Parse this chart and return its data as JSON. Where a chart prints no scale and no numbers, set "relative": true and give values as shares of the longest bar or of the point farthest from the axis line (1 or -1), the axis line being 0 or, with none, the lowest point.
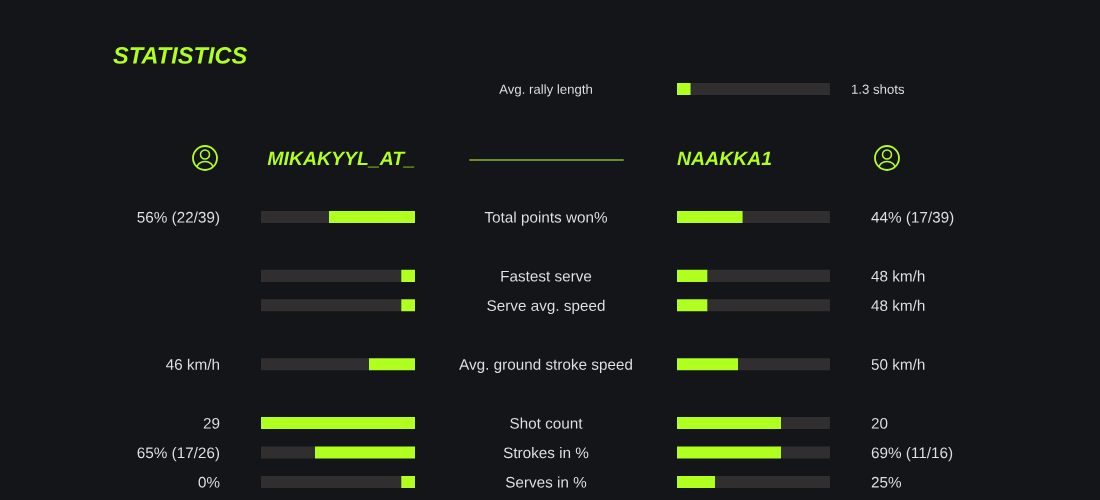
{
  "chart_data": [
    {
      "type": "bar",
      "orientation": "horizontal",
      "stacked": true,
      "relative": true,
      "categories": [
        "Avg. rally length"
      ],
      "series": [
        {
          "color": "#b0ff1e",
          "values": [
            0.09
          ]
        },
        {
          "color": "#302e2e",
          "values": [
            0.91
          ]
        }
      ],
      "annotations": [
        "1.3 shots"
      ],
      "tick_labels": "y"
    },
    {
      "type": "bar",
      "orientation": "horizontal",
      "stacked": true,
      "relative": true,
      "title": "STATISTICS",
      "categories": [
        "Total points won%",
        null,
        "Fastest serve",
        "Serve avg. speed",
        null,
        "Avg. ground stroke speed",
        null,
        "Shot count",
        "Strokes in %",
        "Serves in %"
      ],
      "series": [
        {
          "name": "MIKAKYYL_AT_",
          "color": "#b0ff1e",
          "values": [
            -0.56,
            null,
            -0.09,
            -0.09,
            null,
            -0.3,
            null,
            -1,
            -0.65,
            -0.09
          ]
        },
        {
          "color": "#302e2e",
          "values": [
            -0.44,
            null,
            -0.91,
            -0.91,
            null,
            -0.7,
            null,
            0,
            -0.35,
            -0.91
          ]
        }
      ],
      "annotations": [
        "56% (22/39)",
        "46 km/h",
        "29",
        "65% (17/26)",
        "0%"
      ],
      "tick_labels": "y"
    },
    {
      "type": "bar",
      "orientation": "horizontal",
      "stacked": true,
      "relative": true,
      "categories": [
        null,
        null,
        null,
        null,
        null,
        null,
        null,
        null,
        null,
        null
      ],
      "series": [
        {
          "name": "NAAKKA1",
          "color": "#b0ff1e",
          "values": [
            0.43,
            null,
            0.2,
            0.2,
            null,
            0.4,
            null,
            0.68,
            0.68,
            0.25
          ]
        },
        {
          "color": "#302e2e",
          "values": [
            0.57,
            null,
            0.8,
            0.8,
            null,
            0.6,
            null,
            0.32,
            0.32,
            0.75
          ]
        }
      ],
      "annotations": [
        "44% (17/39)",
        "48 km/h",
        "48 km/h",
        "50 km/h",
        "20",
        "69% (11/16)",
        "25%"
      ]
    }
  ]
}
